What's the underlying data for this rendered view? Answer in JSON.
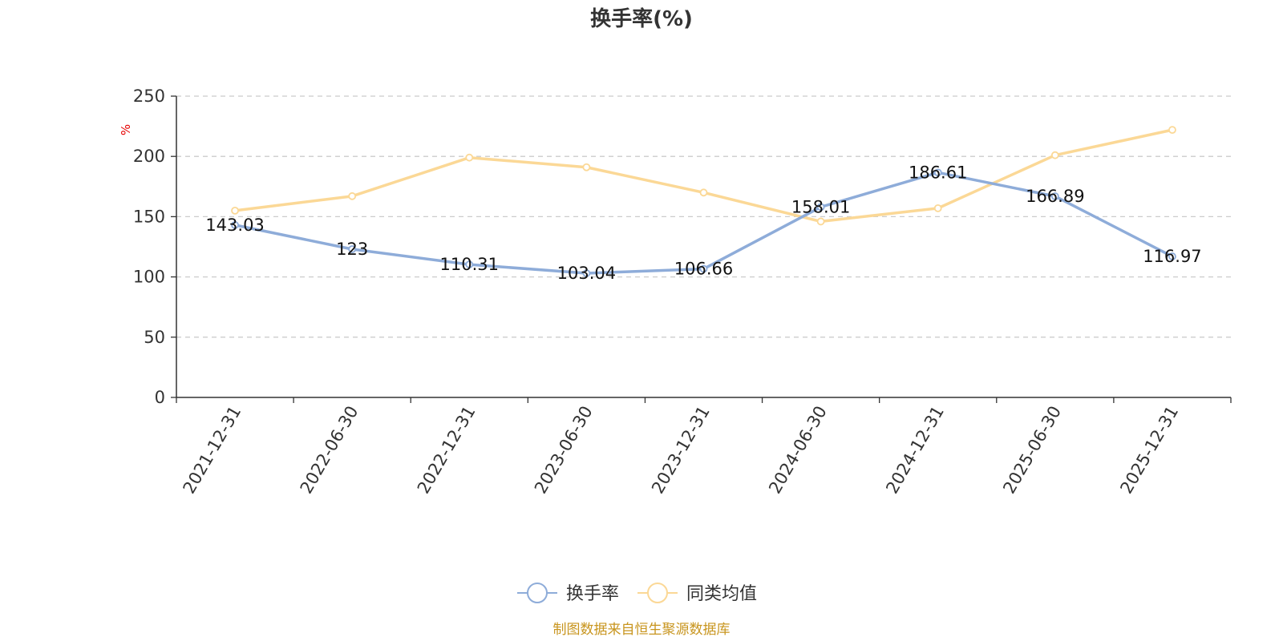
{
  "chart_data": {
    "type": "line",
    "title": "换手率(%)",
    "ylabel": "%",
    "ylim": [
      0,
      250
    ],
    "yticks": [
      0,
      50,
      100,
      150,
      200,
      250
    ],
    "grid": true,
    "legend_position": "bottom",
    "categories": [
      "2021-12-31",
      "2022-06-30",
      "2022-12-31",
      "2023-06-30",
      "2023-12-31",
      "2024-06-30",
      "2024-12-31",
      "2025-06-30",
      "2025-12-31"
    ],
    "series": [
      {
        "name": "换手率",
        "color": "#8eacd9",
        "values": [
          143.03,
          123,
          110.31,
          103.04,
          106.66,
          158.01,
          186.61,
          166.89,
          116.97
        ],
        "labels": [
          "143.03",
          "123",
          "110.31",
          "103.04",
          "106.66",
          "158.01",
          "186.61",
          "166.89",
          "116.97"
        ]
      },
      {
        "name": "同类均值",
        "color": "#fbd896",
        "values": [
          155,
          167,
          199,
          191,
          170,
          146,
          157,
          201,
          222
        ]
      }
    ]
  },
  "source_note": "制图数据来自恒生聚源数据库"
}
